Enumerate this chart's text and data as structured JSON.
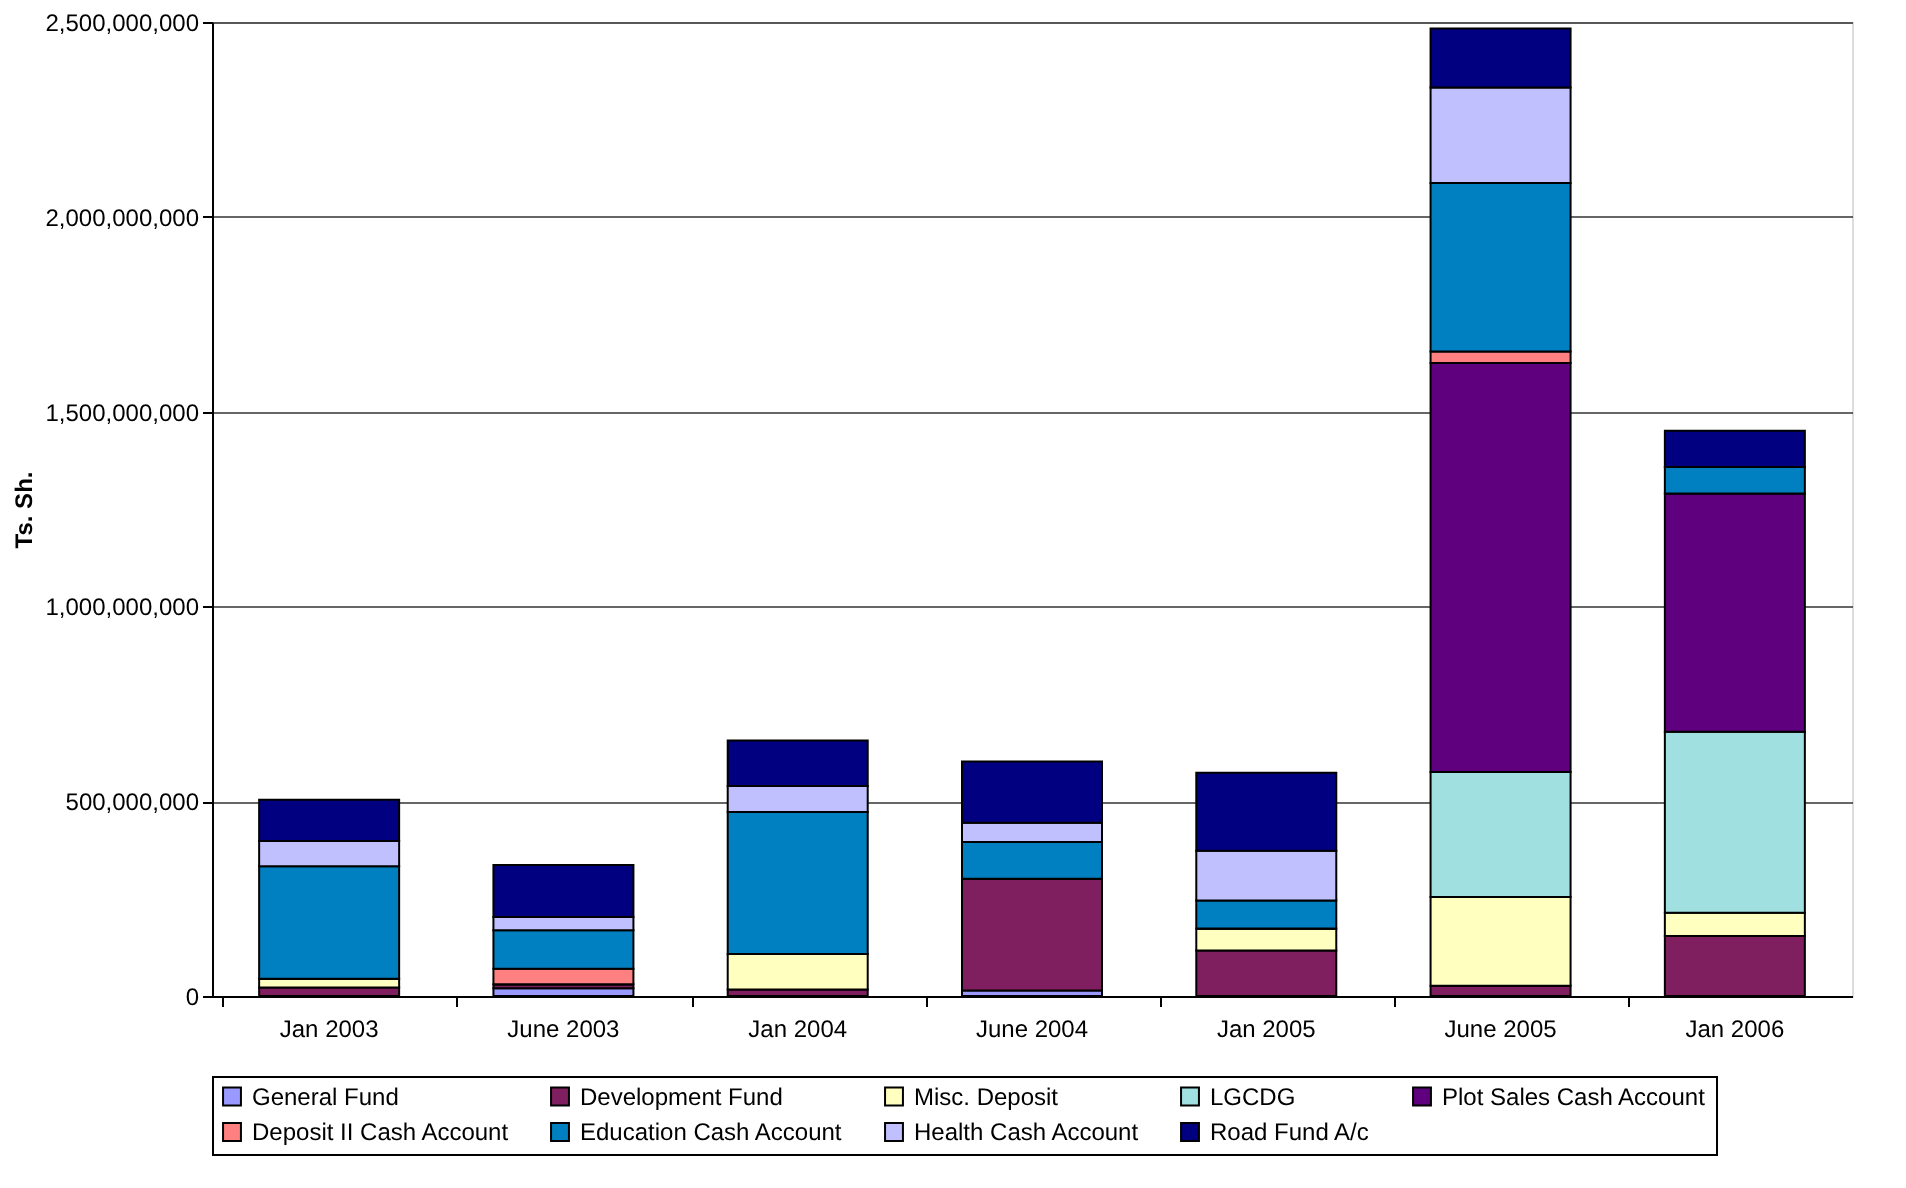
{
  "chart_data": {
    "type": "bar",
    "stacked": true,
    "ylabel": "Ts. Sh.",
    "categories": [
      "Jan 2003",
      "June 2003",
      "Jan 2004",
      "June 2004",
      "Jan 2005",
      "June 2005",
      "Jan 2006"
    ],
    "series": [
      {
        "name": "General Fund",
        "color": "#9999ff",
        "values": [
          0,
          20000000,
          0,
          14000000,
          0,
          0,
          0
        ]
      },
      {
        "name": "Development Fund",
        "color": "#7f1f5f",
        "values": [
          22000000,
          10000000,
          17000000,
          287000000,
          117000000,
          26000000,
          154000000
        ]
      },
      {
        "name": "Misc. Deposit",
        "color": "#ffffc0",
        "values": [
          22000000,
          0,
          91000000,
          0,
          56000000,
          228000000,
          60000000
        ]
      },
      {
        "name": "LGCDG",
        "color": "#a0e0e0",
        "values": [
          0,
          0,
          0,
          0,
          0,
          321000000,
          464000000
        ]
      },
      {
        "name": "Plot Sales Cash Account",
        "color": "#5f007f",
        "values": [
          0,
          0,
          0,
          0,
          0,
          1050000000,
          612000000
        ]
      },
      {
        "name": "Deposit II Cash Account",
        "color": "#ff8080",
        "values": [
          0,
          40000000,
          0,
          0,
          0,
          29000000,
          0
        ]
      },
      {
        "name": "Education Cash Account",
        "color": "#0080c0",
        "values": [
          289000000,
          99000000,
          364000000,
          94000000,
          72000000,
          433000000,
          68000000
        ]
      },
      {
        "name": "Health Cash Account",
        "color": "#c0c0ff",
        "values": [
          65000000,
          34000000,
          67000000,
          50000000,
          128000000,
          245000000,
          0
        ]
      },
      {
        "name": "Road Fund A/c",
        "color": "#000080",
        "values": [
          106000000,
          133000000,
          117000000,
          157000000,
          200000000,
          151000000,
          93000000
        ]
      }
    ],
    "ylim": [
      0,
      2500000000
    ],
    "yticks": [
      {
        "value": 0,
        "label": "0"
      },
      {
        "value": 500000000,
        "label": "500,000,000"
      },
      {
        "value": 1000000000,
        "label": "1,000,000,000"
      },
      {
        "value": 1500000000,
        "label": "1,500,000,000"
      },
      {
        "value": 2000000000,
        "label": "2,000,000,000"
      },
      {
        "value": 2500000000,
        "label": "2,500,000,000"
      }
    ],
    "grid": "y",
    "legend": "bottom"
  }
}
